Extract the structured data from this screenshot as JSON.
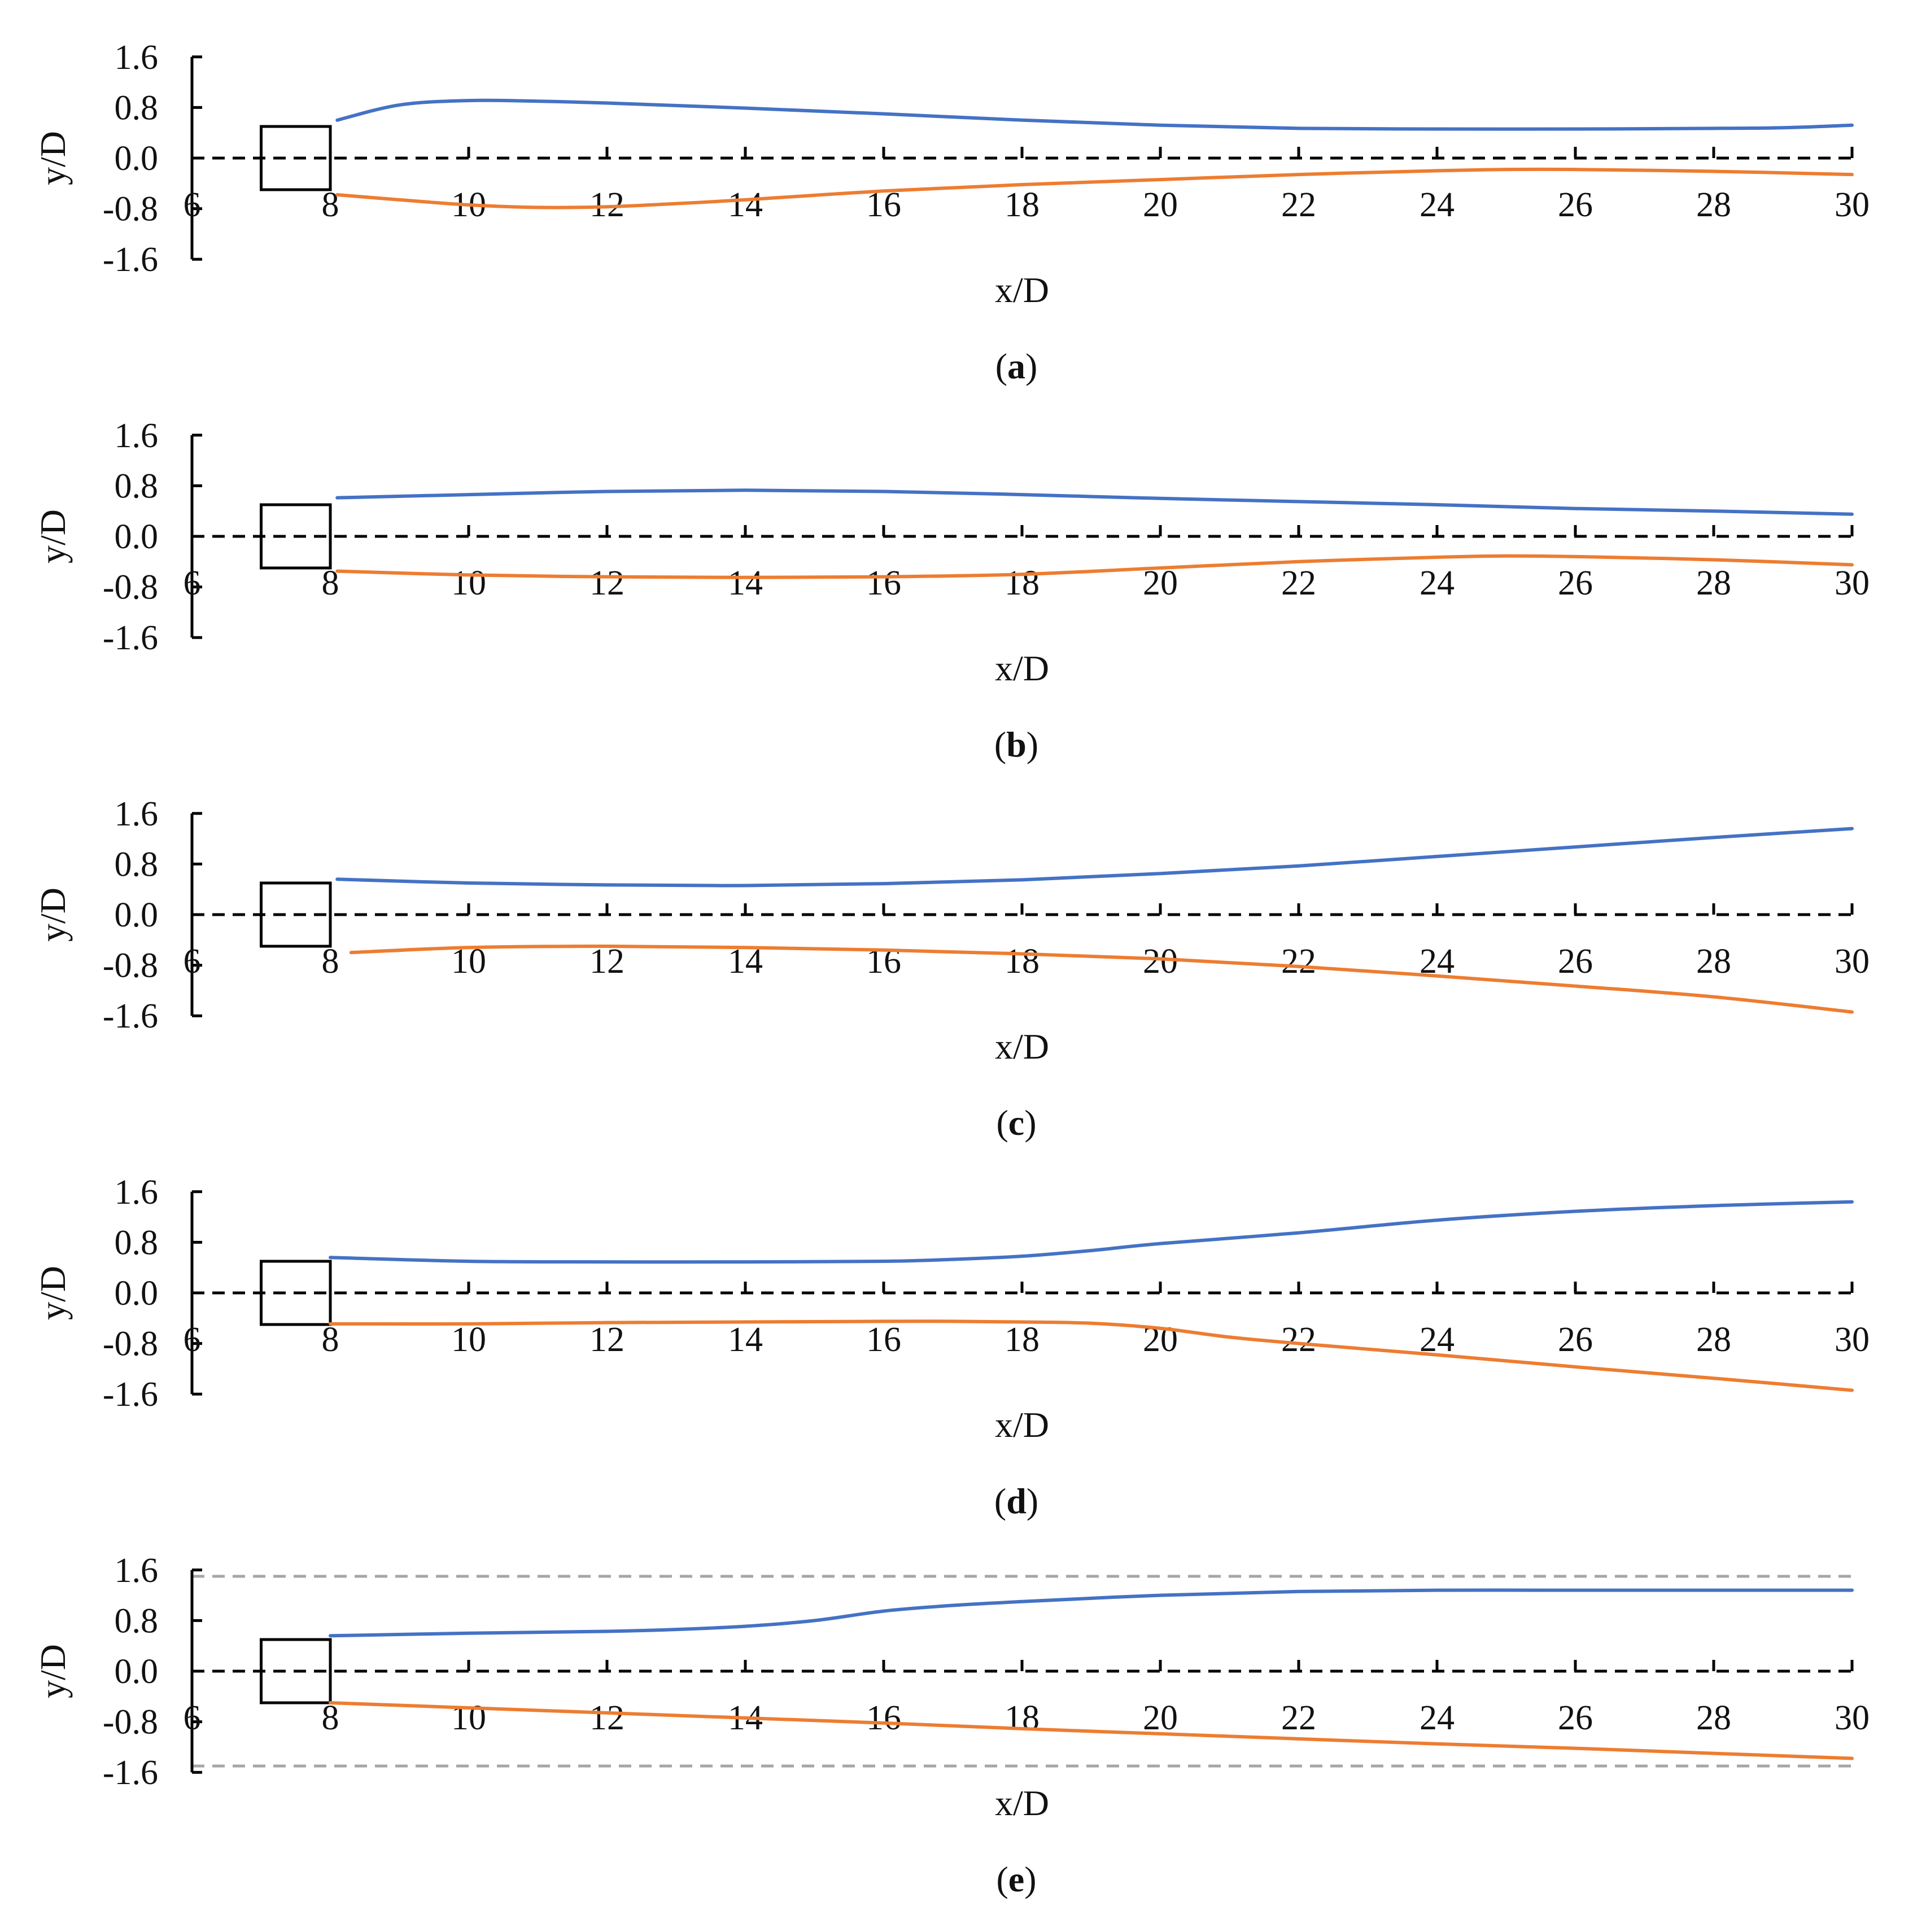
{
  "figure": {
    "colors": {
      "upper": "#4472C4",
      "lower": "#ED7D31",
      "axis": "#000000",
      "centerline": "#000000",
      "wall": "#A6A6A6"
    },
    "x_range": [
      6,
      30
    ],
    "y_range": [
      -1.6,
      1.6
    ],
    "y_ticks": [
      "1.6",
      "0.8",
      "0.0",
      "-0.8",
      "-1.6"
    ],
    "y_tick_values": [
      1.6,
      0.8,
      0.0,
      -0.8,
      -1.6
    ],
    "x_ticks": [
      "6",
      "8",
      "10",
      "12",
      "14",
      "16",
      "18",
      "20",
      "22",
      "24",
      "26",
      "28",
      "30"
    ],
    "x_tick_values": [
      6,
      8,
      10,
      12,
      14,
      16,
      18,
      20,
      22,
      24,
      26,
      28,
      30
    ],
    "cylinder": {
      "x_min": 7,
      "x_max": 8,
      "y_min": -0.5,
      "y_max": 0.5
    }
  },
  "chart_data": [
    {
      "type": "line",
      "panel": "a",
      "caption_open": "(",
      "caption_letter": "a",
      "caption_close": ")",
      "xlabel": "x/D",
      "ylabel": "y/D",
      "xlim": [
        6,
        30
      ],
      "ylim": [
        -1.6,
        1.6
      ],
      "walls": false,
      "series": [
        {
          "name": "upper",
          "x": [
            8.1,
            9,
            10,
            11,
            12,
            14,
            16,
            18,
            20,
            22,
            24,
            26,
            28,
            29,
            30
          ],
          "y": [
            0.6,
            0.84,
            0.91,
            0.9,
            0.87,
            0.79,
            0.7,
            0.6,
            0.52,
            0.47,
            0.46,
            0.46,
            0.47,
            0.48,
            0.52
          ]
        },
        {
          "name": "lower",
          "x": [
            8.1,
            9,
            10,
            11,
            12,
            13,
            14,
            16,
            18,
            20,
            22,
            24,
            25,
            26,
            28,
            30
          ],
          "y": [
            -0.58,
            -0.66,
            -0.74,
            -0.78,
            -0.77,
            -0.72,
            -0.66,
            -0.52,
            -0.42,
            -0.34,
            -0.26,
            -0.2,
            -0.18,
            -0.18,
            -0.21,
            -0.26
          ]
        }
      ]
    },
    {
      "type": "line",
      "panel": "b",
      "caption_open": "(",
      "caption_letter": "b",
      "caption_close": ")",
      "xlabel": "x/D",
      "ylabel": "y/D",
      "xlim": [
        6,
        30
      ],
      "ylim": [
        -1.6,
        1.6
      ],
      "walls": false,
      "series": [
        {
          "name": "upper",
          "x": [
            8.1,
            10,
            12,
            14,
            16,
            18,
            20,
            22,
            24,
            26,
            28,
            30
          ],
          "y": [
            0.61,
            0.66,
            0.71,
            0.73,
            0.71,
            0.66,
            0.6,
            0.55,
            0.5,
            0.44,
            0.4,
            0.35
          ]
        },
        {
          "name": "lower",
          "x": [
            8.1,
            10,
            12,
            14,
            16,
            18,
            20,
            22,
            24,
            25,
            26,
            28,
            30
          ],
          "y": [
            -0.55,
            -0.61,
            -0.64,
            -0.65,
            -0.64,
            -0.6,
            -0.5,
            -0.4,
            -0.33,
            -0.31,
            -0.32,
            -0.37,
            -0.45
          ]
        }
      ]
    },
    {
      "type": "line",
      "panel": "c",
      "caption_open": "(",
      "caption_letter": "c",
      "caption_close": ")",
      "xlabel": "x/D",
      "ylabel": "y/D",
      "xlim": [
        6,
        30
      ],
      "ylim": [
        -1.6,
        1.6
      ],
      "walls": false,
      "series": [
        {
          "name": "upper",
          "x": [
            8.1,
            10,
            12,
            14,
            16,
            18,
            20,
            22,
            24,
            26,
            28,
            30
          ],
          "y": [
            0.56,
            0.5,
            0.47,
            0.46,
            0.49,
            0.55,
            0.65,
            0.77,
            0.92,
            1.07,
            1.22,
            1.36
          ]
        },
        {
          "name": "lower",
          "x": [
            8.3,
            10,
            12,
            14,
            16,
            18,
            20,
            22,
            24,
            26,
            28,
            30
          ],
          "y": [
            -0.6,
            -0.52,
            -0.5,
            -0.52,
            -0.56,
            -0.62,
            -0.7,
            -0.82,
            -0.97,
            -1.13,
            -1.3,
            -1.54
          ]
        }
      ]
    },
    {
      "type": "line",
      "panel": "d",
      "caption_open": "(",
      "caption_letter": "d",
      "caption_close": ")",
      "xlabel": "x/D",
      "ylabel": "y/D",
      "xlim": [
        6,
        30
      ],
      "ylim": [
        -1.6,
        1.6
      ],
      "walls": false,
      "series": [
        {
          "name": "upper",
          "x": [
            8,
            10,
            12,
            14,
            16,
            17,
            18,
            19,
            20,
            22,
            24,
            26,
            28,
            30
          ],
          "y": [
            0.56,
            0.5,
            0.49,
            0.49,
            0.5,
            0.53,
            0.58,
            0.67,
            0.78,
            0.95,
            1.15,
            1.29,
            1.38,
            1.44
          ]
        },
        {
          "name": "lower",
          "x": [
            8,
            10,
            12,
            14,
            16,
            17,
            18,
            19,
            20,
            21,
            22,
            24,
            26,
            28,
            30
          ],
          "y": [
            -0.49,
            -0.49,
            -0.47,
            -0.46,
            -0.45,
            -0.45,
            -0.46,
            -0.48,
            -0.56,
            -0.7,
            -0.8,
            -0.98,
            -1.17,
            -1.35,
            -1.54
          ]
        }
      ]
    },
    {
      "type": "line",
      "panel": "e",
      "caption_open": "(",
      "caption_letter": "e",
      "caption_close": ")",
      "xlabel": "x/D",
      "ylabel": "y/D",
      "xlim": [
        6,
        30
      ],
      "ylim": [
        -1.6,
        1.6
      ],
      "walls": true,
      "wall_y": [
        1.5,
        -1.5
      ],
      "series": [
        {
          "name": "upper",
          "x": [
            8,
            10,
            12,
            13,
            14,
            15,
            16,
            17,
            18,
            20,
            22,
            24,
            26,
            28,
            30
          ],
          "y": [
            0.56,
            0.6,
            0.63,
            0.66,
            0.71,
            0.8,
            0.95,
            1.04,
            1.1,
            1.2,
            1.26,
            1.28,
            1.28,
            1.28,
            1.28
          ]
        },
        {
          "name": "lower",
          "x": [
            8,
            10,
            12,
            14,
            16,
            18,
            20,
            22,
            24,
            26,
            28,
            30
          ],
          "y": [
            -0.5,
            -0.58,
            -0.66,
            -0.74,
            -0.82,
            -0.91,
            -0.99,
            -1.07,
            -1.15,
            -1.22,
            -1.3,
            -1.38
          ]
        }
      ]
    }
  ]
}
